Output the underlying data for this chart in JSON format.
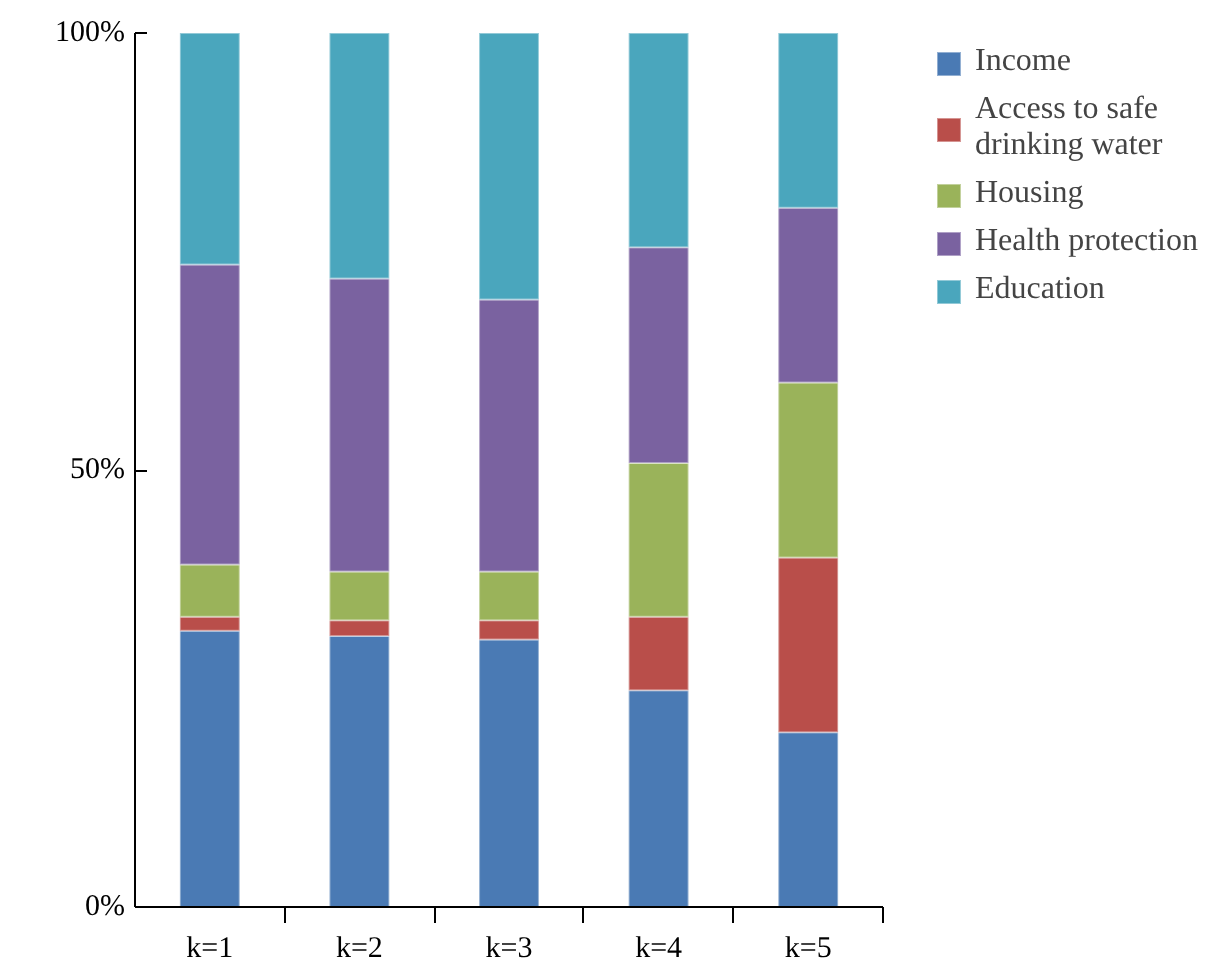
{
  "chart_data": {
    "type": "bar",
    "stacked": true,
    "categories": [
      "k=1",
      "k=2",
      "k=3",
      "k=4",
      "k=5"
    ],
    "series": [
      {
        "name": "Income",
        "color": "#4a7ab4",
        "values": [
          31.6,
          31.0,
          30.6,
          24.8,
          20
        ]
      },
      {
        "name": "Access to safe drinking water",
        "color": "#b94e4a",
        "values": [
          1.6,
          1.8,
          2.2,
          8.4,
          20
        ]
      },
      {
        "name": "Housing",
        "color": "#9ab35a",
        "values": [
          6.0,
          5.6,
          5.6,
          17.6,
          20
        ]
      },
      {
        "name": "Health protection",
        "color": "#7a62a0",
        "values": [
          34.3,
          33.5,
          31.1,
          24.7,
          20
        ]
      },
      {
        "name": "Education",
        "color": "#4aa6bd",
        "values": [
          26.5,
          28.1,
          30.5,
          24.5,
          20
        ]
      }
    ],
    "ylim": [
      0,
      100
    ],
    "yticks": [
      {
        "value": 0,
        "label": "0%"
      },
      {
        "value": 50,
        "label": "50%"
      },
      {
        "value": 100,
        "label": "100%"
      }
    ],
    "grid": false,
    "legend": "right"
  }
}
